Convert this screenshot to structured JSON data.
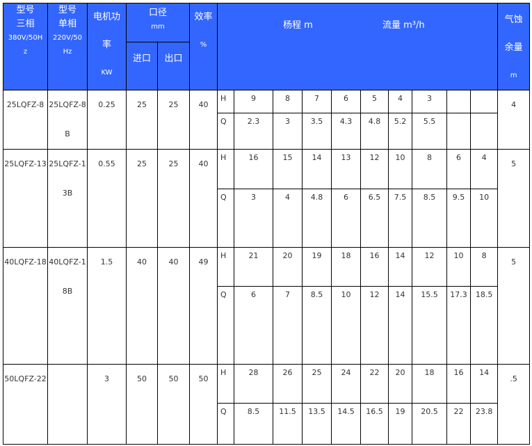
{
  "header": {
    "model3": [
      "型号",
      "三相",
      "380V/50H",
      "z"
    ],
    "model1": [
      "型号",
      "单相",
      "220V/50",
      "Hz"
    ],
    "power": [
      "电机功",
      "率",
      "KW"
    ],
    "caliber": [
      "口径",
      "mm"
    ],
    "inlet": "进口",
    "outlet": "出口",
    "efficiency": [
      "效率",
      "%"
    ],
    "head": "杨程 m",
    "flow": "流量 m³/h",
    "npsh": [
      "气蚀",
      "余量",
      "m"
    ]
  },
  "rows": [
    {
      "model3": "25LQFZ-8",
      "model1": "25LQFZ-8B",
      "power": "0.25",
      "inlet": "25",
      "outlet": "25",
      "eff": "40",
      "npsh": "4",
      "H": [
        "9",
        "8",
        "7",
        "6",
        "5",
        "4",
        "3",
        "",
        ""
      ],
      "Q": [
        "2.3",
        "3",
        "3.5",
        "4.3",
        "4.8",
        "5.2",
        "5.5",
        "",
        ""
      ]
    },
    {
      "model3": "25LQFZ-13",
      "model1": "25LQFZ-13B",
      "power": "0.55",
      "inlet": "25",
      "outlet": "25",
      "eff": "40",
      "npsh": "5",
      "H": [
        "16",
        "15",
        "14",
        "13",
        "12",
        "10",
        "8",
        "6",
        "4"
      ],
      "Q": [
        "3",
        "4",
        "4.8",
        "6",
        "6.5",
        "7.5",
        "8.5",
        "9.5",
        "10"
      ]
    },
    {
      "model3": "40LQFZ-18",
      "model1": "40LQFZ-18B",
      "power": "1.5",
      "inlet": "40",
      "outlet": "40",
      "eff": "49",
      "npsh": "5",
      "H": [
        "21",
        "20",
        "19",
        "18",
        "16",
        "14",
        "12",
        "10",
        "8"
      ],
      "Q": [
        "6",
        "7",
        "8.5",
        "10",
        "12",
        "14",
        "15.5",
        "17.3",
        "18.5"
      ]
    },
    {
      "model3": "50LQFZ-22",
      "model1": "",
      "power": "3",
      "inlet": "50",
      "outlet": "50",
      "eff": "50",
      "npsh": ".5",
      "H": [
        "28",
        "26",
        "25",
        "24",
        "22",
        "20",
        "18",
        "16",
        "14"
      ],
      "Q": [
        "8.5",
        "11.5",
        "13.5",
        "14.5",
        "16.5",
        "19",
        "20.5",
        "22",
        "23.8"
      ]
    }
  ],
  "labels": {
    "H": "H",
    "Q": "Q"
  },
  "colors": {
    "header_bg": "#3366ff",
    "border": "#000000"
  }
}
